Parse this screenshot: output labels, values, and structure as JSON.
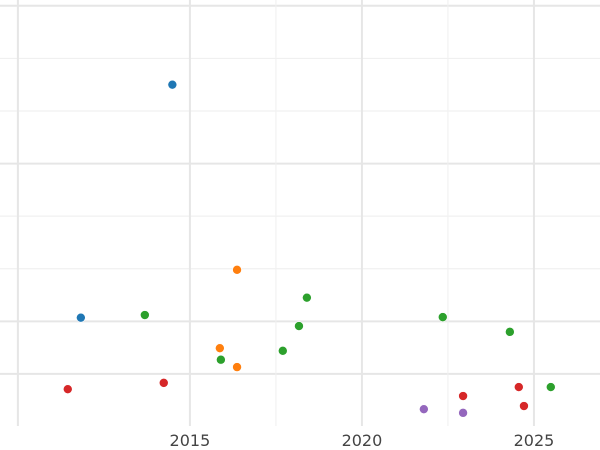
{
  "chart_data": {
    "type": "scatter",
    "title": "",
    "xlabel": "",
    "ylabel": "",
    "xlim": [
      2009.48,
      2026.92
    ],
    "ylim": [
      -0.99,
      7.11
    ],
    "x_ticks": [
      2015,
      2020,
      2025
    ],
    "x_tick_labels": [
      "2015",
      "2020",
      "2025"
    ],
    "x_minor_grid": [
      2010,
      2017.5,
      2022.5
    ],
    "y_grid": [
      0,
      1,
      2,
      3,
      4,
      5,
      6,
      7
    ],
    "y_major_grid": [
      0,
      1,
      4,
      7
    ],
    "grid": true,
    "y_tick_labels_visible": false,
    "series": [
      {
        "color": "#1f77b4",
        "points": [
          [
            2014.49,
            5.5
          ],
          [
            2011.83,
            1.07
          ]
        ]
      },
      {
        "color": "#ff7f0e",
        "points": [
          [
            2016.37,
            1.98
          ],
          [
            2015.87,
            0.49
          ],
          [
            2016.37,
            0.13
          ]
        ]
      },
      {
        "color": "#2ca02c",
        "points": [
          [
            2013.69,
            1.12
          ],
          [
            2015.9,
            0.27
          ],
          [
            2017.7,
            0.44
          ],
          [
            2018.17,
            0.91
          ],
          [
            2018.4,
            1.45
          ],
          [
            2022.35,
            1.08
          ],
          [
            2024.3,
            0.8
          ],
          [
            2025.49,
            -0.25
          ]
        ]
      },
      {
        "color": "#d62728",
        "points": [
          [
            2011.45,
            -0.29
          ],
          [
            2014.24,
            -0.17
          ],
          [
            2022.94,
            -0.42
          ],
          [
            2024.56,
            -0.25
          ],
          [
            2024.71,
            -0.61
          ]
        ]
      },
      {
        "color": "#9467bd",
        "points": [
          [
            2021.8,
            -0.67
          ],
          [
            2022.94,
            -0.74
          ]
        ]
      }
    ]
  }
}
